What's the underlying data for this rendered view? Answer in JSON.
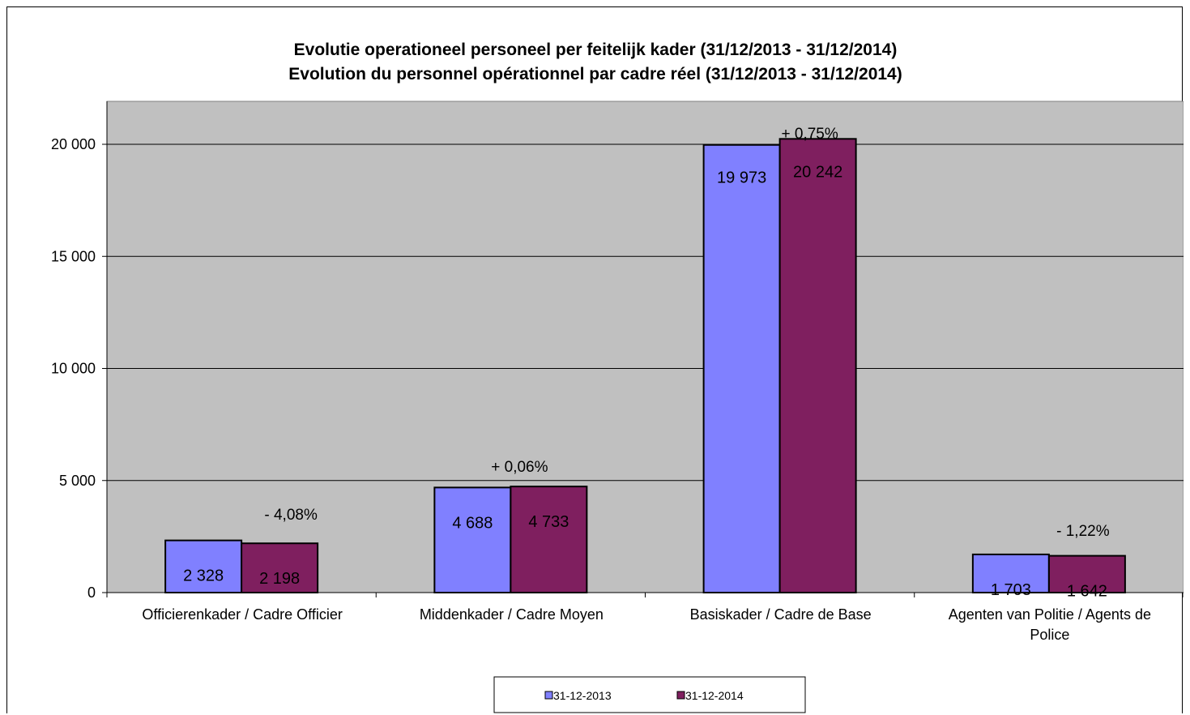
{
  "chart_data": {
    "type": "bar",
    "title": [
      "Evolutie operationeel personeel per feitelijk kader (31/12/2013 - 31/12/2014)",
      "Evolution du personnel opérationnel par cadre réel (31/12/2013 - 31/12/2014)"
    ],
    "categories": [
      [
        "Officierenkader / Cadre Officier"
      ],
      [
        "Middenkader / Cadre Moyen"
      ],
      [
        "Basiskader / Cadre de Base"
      ],
      [
        "Agenten van Politie / Agents de",
        "Police"
      ]
    ],
    "series": [
      {
        "name": "31-12-2013",
        "values": [
          2328,
          4688,
          19973,
          1703
        ],
        "labels": [
          "2 328",
          "4 688",
          "19 973",
          "1 703"
        ],
        "color": "#8080ff"
      },
      {
        "name": "31-12-2014",
        "values": [
          2198,
          4733,
          20242,
          1642
        ],
        "labels": [
          "2 198",
          "4 733",
          "20 242",
          "1 642"
        ],
        "color": "#7f1f5f"
      }
    ],
    "annotations": [
      "- 4,08%",
      "+ 0,06%",
      "+ 0,75%",
      "- 1,22%"
    ],
    "yticks": [
      0,
      5000,
      10000,
      15000,
      20000
    ],
    "ytick_labels": [
      "0",
      "5 000",
      "10 000",
      "15 000",
      "20 000"
    ],
    "ylim": [
      0,
      20000
    ],
    "plot_background": "#c0c0c0",
    "grid": true,
    "legend_position": "bottom"
  }
}
